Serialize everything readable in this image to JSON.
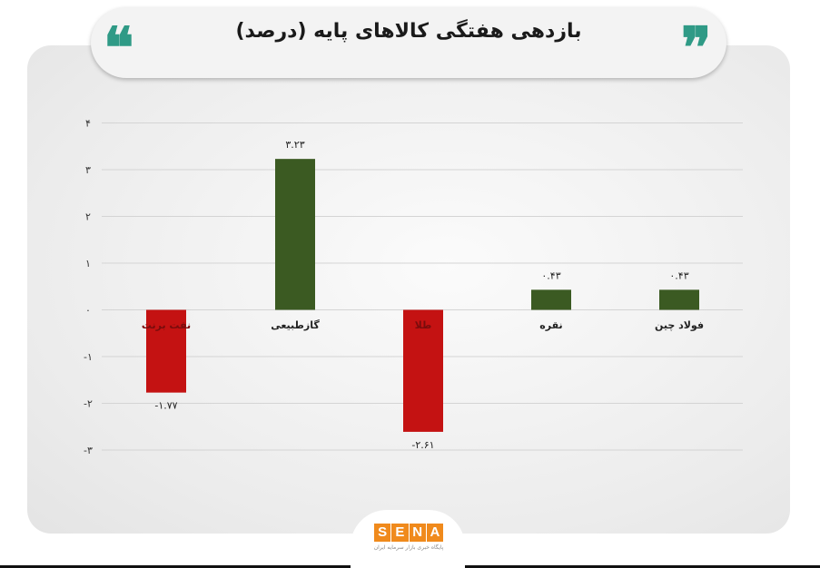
{
  "header": {
    "title": "بازدهی هفتگی کالاهای پایه (درصد)",
    "quote_open": "❝",
    "quote_close": "❞"
  },
  "chart_data": {
    "type": "bar",
    "title": "بازدهی هفتگی کالاهای پایه (درصد)",
    "xlabel": "",
    "ylabel": "",
    "categories": [
      "نفت برنت",
      "گازطبیعی",
      "طلا",
      "نقره",
      "فولاد چین"
    ],
    "values": [
      -1.77,
      3.23,
      -2.61,
      0.43,
      0.43
    ],
    "value_labels": [
      "-۱.۷۷",
      "۳.۲۳",
      "-۲.۶۱",
      "۰.۴۳",
      "۰.۴۳"
    ],
    "ylim": [
      -3,
      4
    ],
    "yticks": [
      4,
      3,
      2,
      1,
      0,
      -1,
      -2,
      -3
    ],
    "ytick_labels": [
      "۴",
      "۳",
      "۲",
      "۱",
      "۰",
      "-۱",
      "-۲",
      "-۳"
    ],
    "grid": true,
    "colors": {
      "positive": "#3b5a22",
      "negative": "#c41212",
      "grid": "#d4d4d4"
    }
  },
  "brand": {
    "letters": [
      "S",
      "E",
      "N",
      "A"
    ],
    "subtitle": "پایگاه خبری بازار سرمایه ایران"
  }
}
